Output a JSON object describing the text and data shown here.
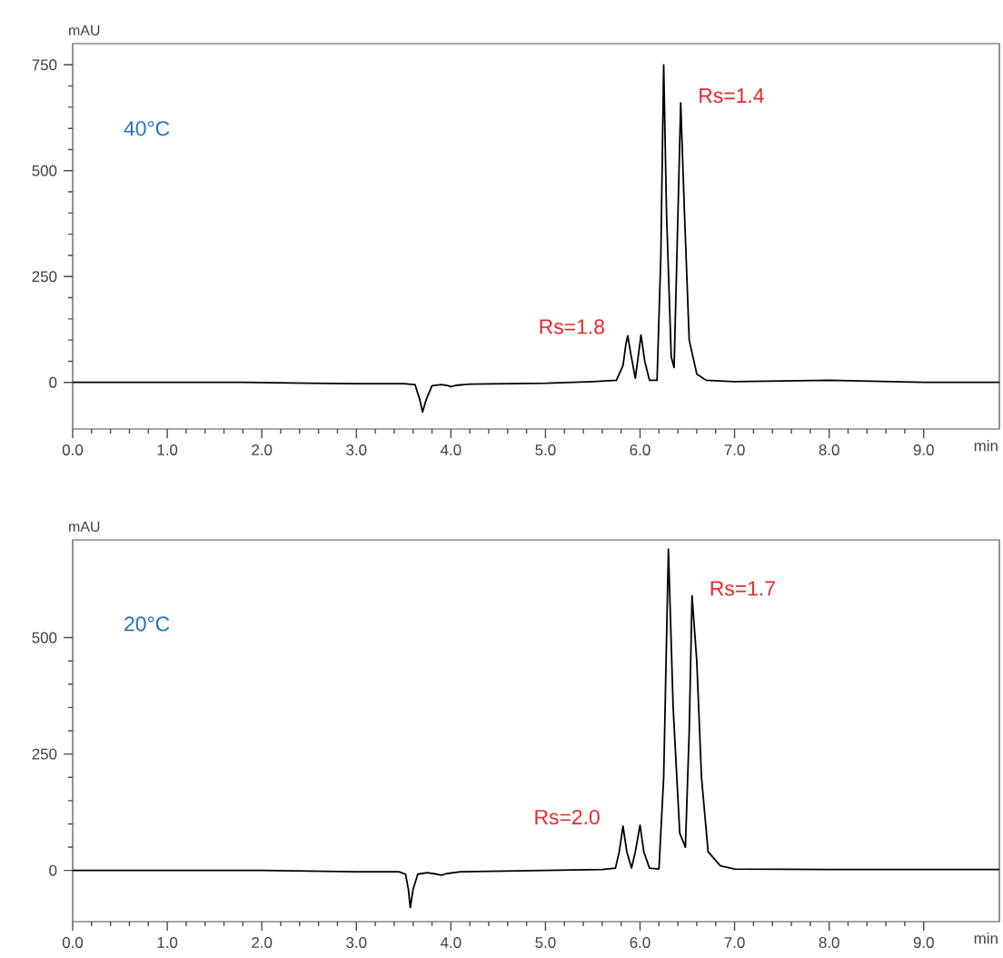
{
  "chart_data": [
    {
      "type": "line",
      "xlabel": "min",
      "ylabel": "mAU",
      "x": [
        0,
        0.7,
        1.8,
        2.5,
        3.0,
        3.5,
        3.62,
        3.67,
        3.7,
        3.74,
        3.8,
        3.9,
        3.97,
        4.0,
        4.05,
        4.2,
        5.0,
        5.5,
        5.75,
        5.82,
        5.85,
        5.87,
        5.9,
        5.95,
        5.98,
        6.01,
        6.05,
        6.1,
        6.18,
        6.22,
        6.25,
        6.28,
        6.33,
        6.36,
        6.39,
        6.43,
        6.47,
        6.52,
        6.6,
        6.7,
        7.0,
        8.0,
        9.0,
        9.8
      ],
      "series": [
        {
          "color": "#000000",
          "values": [
            0,
            0,
            0,
            -2,
            -3,
            -3,
            -5,
            -40,
            -70,
            -40,
            -8,
            -5,
            -8,
            -10,
            -7,
            -4,
            -2,
            2,
            5,
            40,
            90,
            110,
            70,
            10,
            60,
            112,
            50,
            5,
            5,
            300,
            750,
            400,
            60,
            35,
            300,
            660,
            400,
            100,
            20,
            5,
            2,
            5,
            0,
            0
          ]
        }
      ],
      "xlim": [
        0,
        9.8
      ],
      "ylim": [
        -110,
        800
      ],
      "xticks": [
        {
          "value": 0,
          "label": "0.0"
        },
        {
          "value": 1,
          "label": "1.0"
        },
        {
          "value": 2,
          "label": "2.0"
        },
        {
          "value": 3,
          "label": "3.0"
        },
        {
          "value": 4,
          "label": "4.0"
        },
        {
          "value": 5,
          "label": "5.0"
        },
        {
          "value": 6,
          "label": "6.0"
        },
        {
          "value": 7,
          "label": "7.0"
        },
        {
          "value": 8,
          "label": "8.0"
        },
        {
          "value": 9,
          "label": "9.0"
        }
      ],
      "yticks": [
        0,
        250,
        500,
        750
      ],
      "grid": false,
      "marker": "none",
      "line_style": "solid",
      "annotations": [
        "40°C",
        {
          "text": "Rs=1.8",
          "x": 5.87,
          "y": 110
        },
        {
          "text": "Rs=1.4",
          "x": 6.43,
          "y": 660
        }
      ]
    },
    {
      "type": "line",
      "xlabel": "min",
      "ylabel": "mAU",
      "x": [
        0,
        1,
        2,
        3.0,
        3.45,
        3.52,
        3.55,
        3.57,
        3.6,
        3.65,
        3.75,
        3.85,
        3.9,
        3.95,
        4.1,
        5.0,
        5.6,
        5.74,
        5.78,
        5.82,
        5.86,
        5.91,
        5.95,
        6.0,
        6.04,
        6.1,
        6.2,
        6.25,
        6.3,
        6.35,
        6.42,
        6.48,
        6.52,
        6.55,
        6.6,
        6.65,
        6.72,
        6.85,
        7.0,
        8.0,
        9.0,
        9.8
      ],
      "series": [
        {
          "color": "#000000",
          "values": [
            0,
            0,
            0,
            -3,
            -3,
            -8,
            -40,
            -80,
            -40,
            -8,
            -5,
            -8,
            -10,
            -7,
            -3,
            0,
            2,
            5,
            40,
            95,
            40,
            5,
            40,
            97,
            40,
            5,
            3,
            200,
            690,
            350,
            80,
            50,
            300,
            590,
            450,
            200,
            40,
            10,
            3,
            2,
            2,
            2
          ]
        }
      ],
      "xlim": [
        0,
        9.8
      ],
      "ylim": [
        -110,
        710
      ],
      "xticks": [
        {
          "value": 0,
          "label": "0.0"
        },
        {
          "value": 1,
          "label": "1.0"
        },
        {
          "value": 2,
          "label": "2.0"
        },
        {
          "value": 3,
          "label": "3.0"
        },
        {
          "value": 4,
          "label": "4.0"
        },
        {
          "value": 5,
          "label": "5.0"
        },
        {
          "value": 6,
          "label": "6.0"
        },
        {
          "value": 7,
          "label": "7.0"
        },
        {
          "value": 8,
          "label": "8.0"
        },
        {
          "value": 9,
          "label": "9.0"
        }
      ],
      "yticks": [
        0,
        250,
        500
      ],
      "grid": false,
      "marker": "none",
      "line_style": "solid",
      "annotations": [
        "20°C",
        {
          "text": "Rs=2.0",
          "x": 5.82,
          "y": 95
        },
        {
          "text": "Rs=1.7",
          "x": 6.55,
          "y": 590
        }
      ]
    }
  ]
}
